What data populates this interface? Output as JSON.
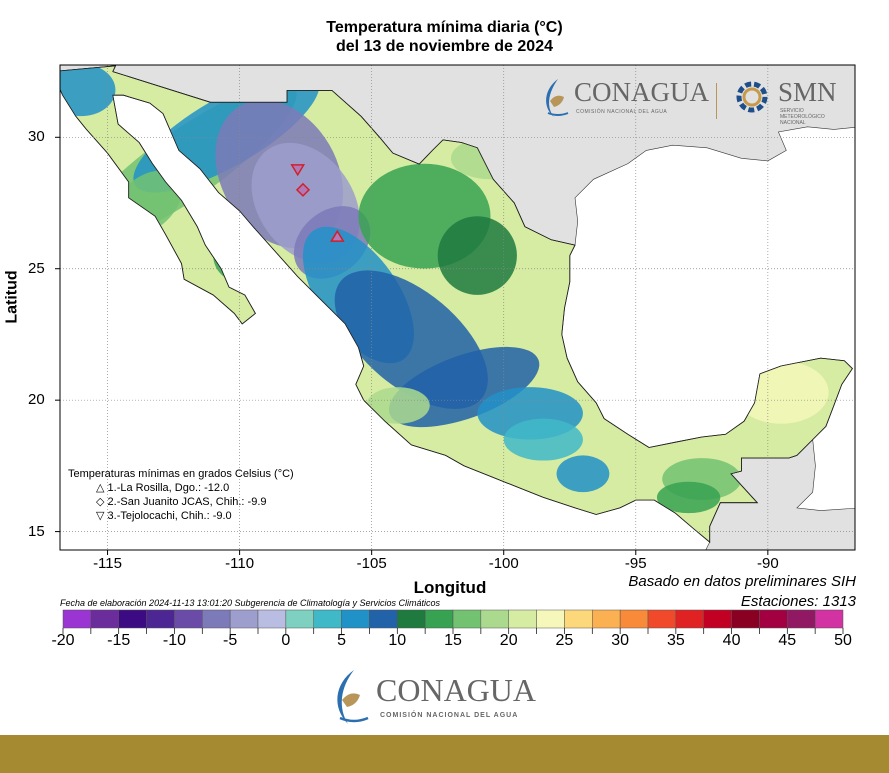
{
  "title": {
    "line1": "Temperatura mínima diaria (°C)",
    "line2": "del 13 de noviembre de 2024"
  },
  "axes": {
    "xlabel": "Longitud",
    "ylabel": "Latitud",
    "xticks": [
      -115,
      -110,
      -105,
      -100,
      -95,
      -90
    ],
    "yticks": [
      15,
      20,
      25,
      30
    ],
    "xlim": [
      -116.8,
      -86.7
    ],
    "ylim": [
      14.3,
      32.75
    ],
    "grid": true
  },
  "legend": {
    "title": "Temperaturas mínimas en grados Celsius (°C)",
    "items": [
      {
        "symbol": "△",
        "label": "1.-La Rosilla, Dgo.: -12.0",
        "lon": -106.3,
        "lat": 26.2
      },
      {
        "symbol": "◇",
        "label": "2.-San Juanito JCAS, Chih.: -9.9",
        "lon": -107.6,
        "lat": 28.0
      },
      {
        "symbol": "▽",
        "label": "3.-Tejolocachi, Chih.: -9.0",
        "lon": -107.8,
        "lat": 28.8
      }
    ]
  },
  "notes": {
    "basado": "Basado en datos preliminares SIH",
    "estaciones": "Estaciones:  1313",
    "fecha": "Fecha de elaboración 2024-11-13 13:01:20 Subgerencia de Climatología y Servicios Climáticos"
  },
  "colorbar": {
    "labels": [
      "-20",
      "-15",
      "-10",
      "-5",
      "0",
      "5",
      "10",
      "15",
      "20",
      "25",
      "30",
      "35",
      "40",
      "45",
      "50"
    ],
    "min": -20,
    "max": 50,
    "step": 2.5,
    "colors": [
      "#9a34d2",
      "#6b2c9c",
      "#3c0a82",
      "#4c2692",
      "#6a4ca8",
      "#7c7ab8",
      "#9d9ecd",
      "#b9bde2",
      "#7ed0c0",
      "#3fb8c8",
      "#2192c8",
      "#2162a8",
      "#1f7a3f",
      "#37a252",
      "#72c272",
      "#abda8e",
      "#d6eca2",
      "#f5f8ba",
      "#fcd87a",
      "#fbb152",
      "#f88a3a",
      "#f04a2a",
      "#e02222",
      "#c20024",
      "#8a0022",
      "#a30042",
      "#911862",
      "#d232a2"
    ]
  },
  "logos": {
    "conagua": "CONAGUA",
    "conagua_sub": "COMISIÓN NACIONAL DEL AGUA",
    "smn": "SMN",
    "smn_sub": "SERVICIO METEOROLÓGICO NACIONAL"
  },
  "colors": {
    "land_other": "#e1e1e1",
    "ocean": "#ffffff",
    "band": "#a68a32",
    "marker": "#d0202a"
  }
}
